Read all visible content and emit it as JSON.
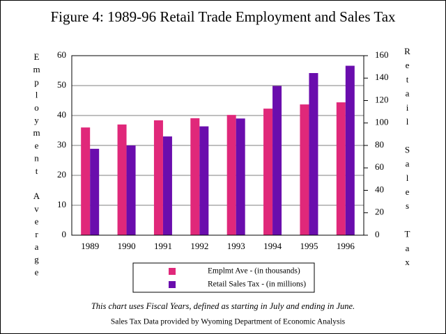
{
  "chart_data": {
    "type": "bar",
    "title": "Figure 4:  1989-96 Retail Trade Employment and Sales Tax",
    "y_label": "Employment Average",
    "y2_label": "Retail Sales Tax",
    "categories": [
      "1989",
      "1990",
      "1991",
      "1992",
      "1993",
      "1994",
      "1995",
      "1996"
    ],
    "series": [
      {
        "name": "Emplmt Ave - (in thousands)",
        "color": "#e0287a",
        "values": [
          36.0,
          37.0,
          38.4,
          39.1,
          40.2,
          42.3,
          43.7,
          44.4
        ]
      },
      {
        "name": "Retail Sales Tax - (in millions)",
        "color": "#6a0dad",
        "axis": "y2",
        "values": [
          77,
          80,
          88,
          97,
          104,
          133,
          144.5,
          151
        ]
      }
    ],
    "ylim": [
      0,
      60
    ],
    "yticks": [
      0,
      10,
      20,
      30,
      40,
      50,
      60
    ],
    "y2lim": [
      0,
      160
    ],
    "y2ticks": [
      0,
      20,
      40,
      60,
      80,
      100,
      120,
      140,
      160
    ],
    "grid": true,
    "notes": [
      "This chart uses Fiscal Years, defined as starting in July and ending in June.",
      "Sales Tax Data provided by Wyoming Department of Economic Analysis"
    ]
  }
}
